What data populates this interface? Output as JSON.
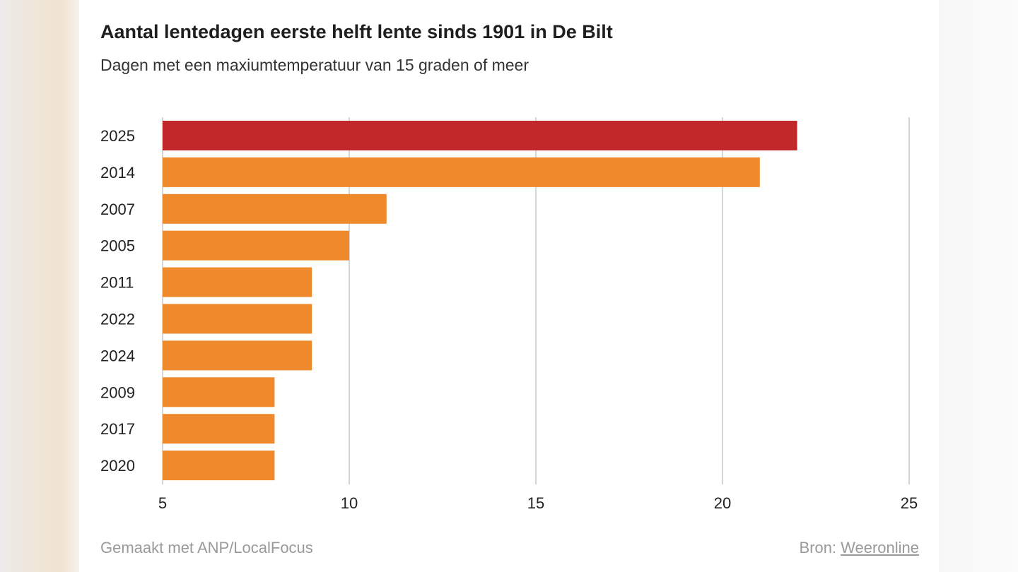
{
  "chart_data": {
    "type": "bar",
    "orientation": "horizontal",
    "title": "Aantal lentedagen eerste helft lente sinds 1901 in De Bilt",
    "subtitle": "Dagen met een maxiumtemperatuur van 15 graden of meer",
    "categories": [
      "2025",
      "2014",
      "2007",
      "2005",
      "2011",
      "2022",
      "2024",
      "2009",
      "2017",
      "2020"
    ],
    "values": [
      22,
      21,
      11,
      10,
      9,
      9,
      9,
      8,
      8,
      8
    ],
    "xlim": [
      5,
      25
    ],
    "xticks": [
      5,
      10,
      15,
      20,
      25
    ],
    "xlabel": "",
    "ylabel": "",
    "grid": "vertical",
    "highlight_category": "2025",
    "colors": {
      "highlight": "#c0282a",
      "bar": "#ef8a2c",
      "grid": "#d6d6d6",
      "text": "#222222"
    }
  },
  "footer": {
    "made_with": "Gemaakt met ANP/LocalFocus",
    "source_label": "Bron:",
    "source_link": "Weeronline"
  }
}
